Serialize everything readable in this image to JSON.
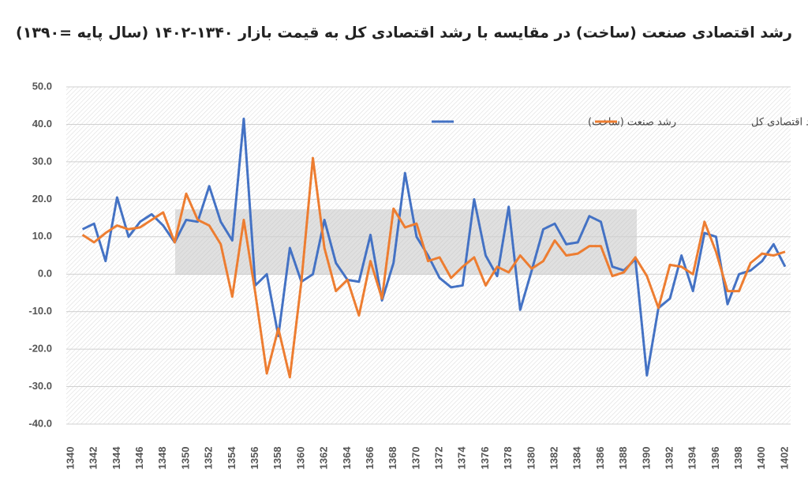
{
  "chart_data": {
    "type": "line",
    "title": "رشد اقتصادی صنعت (ساخت) در مقایسه با رشد اقتصادی کل به قیمت بازار ۱۳۴۰-۱۴۰۲ (سال پایه =۱۳۹۰)",
    "x": [
      1341,
      1342,
      1343,
      1344,
      1345,
      1346,
      1347,
      1348,
      1349,
      1350,
      1351,
      1352,
      1353,
      1354,
      1355,
      1356,
      1357,
      1358,
      1359,
      1360,
      1361,
      1362,
      1363,
      1364,
      1365,
      1366,
      1367,
      1368,
      1369,
      1370,
      1371,
      1372,
      1373,
      1374,
      1375,
      1376,
      1377,
      1378,
      1379,
      1380,
      1381,
      1382,
      1383,
      1384,
      1385,
      1386,
      1387,
      1388,
      1389,
      1390,
      1391,
      1392,
      1393,
      1394,
      1395,
      1396,
      1397,
      1398,
      1399,
      1400,
      1401,
      1402
    ],
    "series": [
      {
        "name": "رشد صنعت (ساخت)",
        "color": "#4472c4",
        "values": [
          12,
          13.5,
          3.5,
          20.5,
          10,
          14,
          16,
          13,
          8.5,
          14.5,
          14,
          23.5,
          14,
          9,
          41.5,
          -3,
          0,
          -16.5,
          7,
          -2,
          0,
          14.5,
          3,
          -1.5,
          -2,
          10.5,
          -7,
          3,
          27,
          10,
          5,
          -1,
          -3.5,
          -3,
          20,
          5,
          -0.5,
          18,
          -9.5,
          1,
          12,
          13.5,
          8,
          8.5,
          15.5,
          14,
          2,
          1,
          4,
          -27,
          -9,
          -6.5,
          5,
          -4.5,
          11,
          10,
          -8,
          0,
          1,
          3.5,
          8,
          2
        ]
      },
      {
        "name": "رشد اقتصادی کل",
        "color": "#ed7d31",
        "values": [
          10.5,
          8.5,
          11,
          13,
          12,
          12.5,
          14.5,
          16.5,
          8.5,
          21.5,
          14.5,
          13,
          8,
          -6,
          14.5,
          -5,
          -26.5,
          -14.5,
          -27.5,
          -2,
          31,
          7,
          -4.5,
          -1.5,
          -11,
          3.5,
          -6.5,
          17.5,
          12.5,
          13.5,
          3.5,
          4.5,
          -1,
          2,
          4.5,
          -3,
          2,
          0.5,
          5,
          1.5,
          3.5,
          9,
          5,
          5.5,
          7.5,
          7.5,
          -0.5,
          0.5,
          4.5,
          -0.5,
          -9,
          2.5,
          2,
          0,
          14,
          6,
          -4.5,
          -4.5,
          3,
          5.5,
          5,
          6
        ]
      }
    ],
    "xlim": [
      1340,
      1402
    ],
    "xticks": [
      1340,
      1342,
      1344,
      1346,
      1348,
      1350,
      1352,
      1354,
      1356,
      1358,
      1360,
      1362,
      1364,
      1366,
      1368,
      1370,
      1372,
      1374,
      1376,
      1378,
      1380,
      1382,
      1384,
      1386,
      1388,
      1390,
      1392,
      1394,
      1396,
      1398,
      1400,
      1402
    ],
    "ylim": [
      -40,
      50
    ],
    "yticks": [
      {
        "value": -40,
        "label": "-40.0"
      },
      {
        "value": -30,
        "label": "-30.0"
      },
      {
        "value": -20,
        "label": "-20.0"
      },
      {
        "value": -10,
        "label": "-10.0"
      },
      {
        "value": 0,
        "label": "0.0"
      },
      {
        "value": 10,
        "label": "10.0"
      },
      {
        "value": 20,
        "label": "20.0"
      },
      {
        "value": 30,
        "label": "30.0"
      },
      {
        "value": 40,
        "label": "40.0"
      },
      {
        "value": 50,
        "label": "50.0"
      }
    ],
    "grid": true,
    "legend": "top-right"
  }
}
